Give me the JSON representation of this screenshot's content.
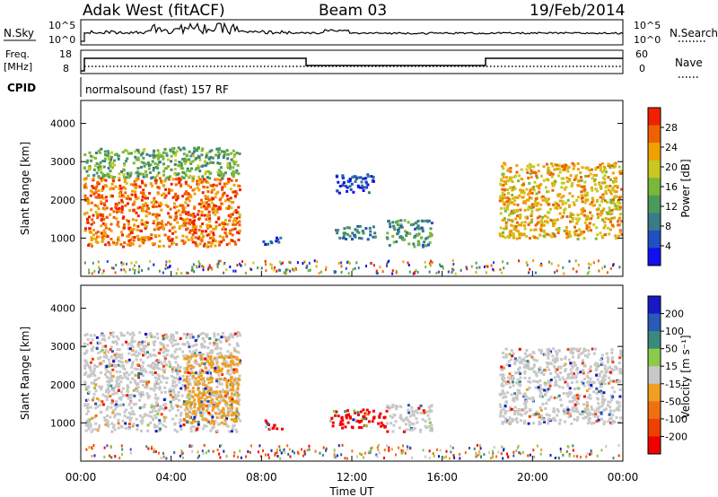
{
  "header": {
    "title": "Adak West (fitACF)",
    "beam": "Beam 03",
    "date": "19/Feb/2014"
  },
  "nsky_panel": {
    "left_label": "N.Sky",
    "right_label": "N.Search",
    "left_ticks": [
      "10^5",
      "10^0"
    ],
    "right_ticks": [
      "10^5",
      "10^0"
    ]
  },
  "freq_panel": {
    "left_label_1": "Freq.",
    "left_label_2": "[MHz]",
    "right_label": "Nave",
    "left_ticks": [
      "18",
      "8"
    ],
    "right_ticks": [
      "60",
      "0"
    ]
  },
  "cpid": {
    "label": "CPID",
    "value": "normalsound (fast) 157 RF"
  },
  "chart_data": [
    {
      "type": "heatmap",
      "parameter": "power",
      "ylabel": "Slant Range [km]",
      "xlabel": "",
      "ylim": [
        0,
        4600
      ],
      "yticks": [
        "1000",
        "2000",
        "3000",
        "4000"
      ],
      "colorbar": {
        "label": "Power [dB]",
        "ticks": [
          "4",
          "8",
          "12",
          "16",
          "20",
          "24",
          "28"
        ],
        "range": [
          0,
          32
        ],
        "colors": [
          "#1010f0",
          "#2050c0",
          "#3a7a8a",
          "#4a9a5a",
          "#7ab83a",
          "#c8c820",
          "#f0a000",
          "#f06000",
          "#f02000"
        ]
      },
      "regions": [
        {
          "t0": 0.1,
          "t1": 7.0,
          "r0": 800,
          "r1": 2600,
          "level": 26
        },
        {
          "t0": 0.1,
          "t1": 7.0,
          "r0": 2600,
          "r1": 3400,
          "level": 14
        },
        {
          "t0": 8.0,
          "t1": 8.9,
          "r0": 850,
          "r1": 1050,
          "level": 6
        },
        {
          "t0": 11.2,
          "t1": 13.0,
          "r0": 1000,
          "r1": 1350,
          "level": 9
        },
        {
          "t0": 11.2,
          "t1": 13.0,
          "r0": 2200,
          "r1": 2700,
          "level": 5
        },
        {
          "t0": 13.5,
          "t1": 15.5,
          "r0": 800,
          "r1": 1500,
          "level": 11
        },
        {
          "t0": 18.5,
          "t1": 23.9,
          "r0": 1000,
          "r1": 3000,
          "level": 22
        }
      ]
    },
    {
      "type": "heatmap",
      "parameter": "velocity",
      "ylabel": "Slant Range [km]",
      "xlabel": "Time UT",
      "ylim": [
        0,
        4600
      ],
      "yticks": [
        "1000",
        "2000",
        "3000",
        "4000"
      ],
      "xticks": [
        "00:00",
        "04:00",
        "08:00",
        "12:00",
        "16:00",
        "20:00",
        "00:00"
      ],
      "xlim_hours": [
        0,
        24
      ],
      "colorbar": {
        "label": "Velocity [m s⁻¹]",
        "ticks": [
          "200",
          "100",
          "50",
          "15",
          "-15",
          "-50",
          "-100",
          "-200"
        ],
        "colors": [
          "#1818c8",
          "#2a5ab8",
          "#3a8a7a",
          "#8acb4a",
          "#c8c8c8",
          "#f0a020",
          "#f07010",
          "#f04000",
          "#f00000"
        ]
      },
      "regions": [
        {
          "t0": 0.1,
          "t1": 7.0,
          "r0": 800,
          "r1": 3400,
          "level": "15"
        },
        {
          "t0": 4.5,
          "t1": 7.0,
          "r0": 1000,
          "r1": 2800,
          "level": "-50"
        },
        {
          "t0": 8.0,
          "t1": 8.9,
          "r0": 850,
          "r1": 1100,
          "level": "-200"
        },
        {
          "t0": 11.0,
          "t1": 13.5,
          "r0": 900,
          "r1": 1400,
          "level": "-200"
        },
        {
          "t0": 13.5,
          "t1": 15.5,
          "r0": 800,
          "r1": 1500,
          "level": "15"
        },
        {
          "t0": 18.5,
          "t1": 23.9,
          "r0": 1000,
          "r1": 3000,
          "level": "15"
        }
      ]
    }
  ]
}
